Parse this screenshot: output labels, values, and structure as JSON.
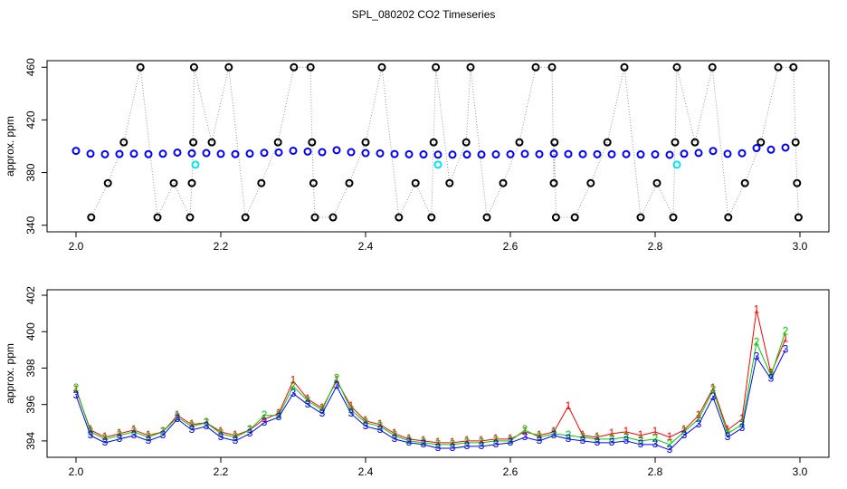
{
  "chart_data": [
    {
      "type": "scatter",
      "title": "SPL_080202  CO2 Timeseries",
      "ylabel": "approx. ppm",
      "xlim": [
        1.96,
        3.04
      ],
      "ylim": [
        335,
        465
      ],
      "xticks": [
        {
          "value": 2,
          "label": "2.0"
        },
        {
          "value": 2.2,
          "label": "2.2"
        },
        {
          "value": 2.4,
          "label": "2.4"
        },
        {
          "value": 2.6,
          "label": "2.6"
        },
        {
          "value": 2.8,
          "label": "2.8"
        },
        {
          "value": 3,
          "label": "3.0"
        }
      ],
      "yticks": [
        340,
        380,
        420,
        460
      ],
      "series": [
        {
          "color": "#000000",
          "x": [
            2.021,
            2.044,
            2.066,
            2.089,
            2.1125,
            2.135,
            2.1575,
            2.16,
            2.162,
            2.163,
            2.1875,
            2.211,
            2.234,
            2.256,
            2.279,
            2.301,
            2.324,
            2.326,
            2.328,
            2.33,
            2.355,
            2.3775,
            2.4,
            2.4225,
            2.446,
            2.469,
            2.491,
            2.494,
            2.497,
            2.516,
            2.539,
            2.545,
            2.5675,
            2.59,
            2.6125,
            2.635,
            2.6575,
            2.66,
            2.661,
            2.663,
            2.689,
            2.711,
            2.734,
            2.7575,
            2.78,
            2.8025,
            2.825,
            2.8275,
            2.83,
            2.855,
            2.879,
            2.901,
            2.924,
            2.946,
            2.97,
            2.991,
            2.994,
            2.996,
            2.998
          ],
          "values": [
            346,
            372,
            403,
            460,
            346,
            372,
            346,
            372,
            403,
            460,
            403,
            460,
            346,
            372,
            403,
            460,
            460,
            403,
            372,
            346,
            346,
            372,
            403,
            460,
            346,
            372,
            346,
            403,
            460,
            372,
            403,
            460,
            346,
            372,
            403,
            460,
            460,
            372,
            403,
            346,
            346,
            372,
            403,
            460,
            346,
            372,
            346,
            403,
            460,
            403,
            460,
            346,
            372,
            403,
            460,
            460,
            403,
            372,
            346
          ]
        },
        {
          "color": "#0000ff",
          "x": [
            2.0,
            2.02,
            2.04,
            2.06,
            2.08,
            2.1,
            2.12,
            2.14,
            2.16,
            2.18,
            2.2,
            2.22,
            2.24,
            2.26,
            2.28,
            2.3,
            2.32,
            2.34,
            2.36,
            2.38,
            2.4,
            2.42,
            2.44,
            2.46,
            2.48,
            2.5,
            2.52,
            2.54,
            2.56,
            2.58,
            2.6,
            2.62,
            2.64,
            2.66,
            2.68,
            2.7,
            2.72,
            2.74,
            2.76,
            2.78,
            2.8,
            2.82,
            2.84,
            2.86,
            2.88,
            2.9,
            2.92,
            2.94,
            2.96,
            2.98
          ],
          "values": [
            396.5,
            394.3,
            393.9,
            394.1,
            394.3,
            394.0,
            394.3,
            395.2,
            394.6,
            394.8,
            394.2,
            394.0,
            394.4,
            395.0,
            395.3,
            396.6,
            396.0,
            395.5,
            397.0,
            395.5,
            394.8,
            394.6,
            394.1,
            393.9,
            393.8,
            393.6,
            393.6,
            393.7,
            393.7,
            393.8,
            393.9,
            394.2,
            394.0,
            394.3,
            394.1,
            394.0,
            393.9,
            393.9,
            394.0,
            393.8,
            393.8,
            393.5,
            394.3,
            394.9,
            396.4,
            394.2,
            394.7,
            398.6,
            397.4,
            399.0
          ]
        },
        {
          "color": "#00e5ee",
          "x": [
            2.165,
            2.5,
            2.83
          ],
          "values": [
            386,
            386,
            386
          ]
        }
      ]
    },
    {
      "type": "marker-line",
      "ylabel": "approx. ppm",
      "xlim": [
        1.96,
        3.04
      ],
      "ylim": [
        393.1,
        402.3
      ],
      "xticks": [
        {
          "value": 2,
          "label": "2.0"
        },
        {
          "value": 2.2,
          "label": "2.2"
        },
        {
          "value": 2.4,
          "label": "2.4"
        },
        {
          "value": 2.6,
          "label": "2.6"
        },
        {
          "value": 2.8,
          "label": "2.8"
        },
        {
          "value": 3,
          "label": "3.0"
        }
      ],
      "yticks": [
        394,
        396,
        398,
        400,
        402
      ],
      "x": [
        2.0,
        2.02,
        2.04,
        2.06,
        2.08,
        2.1,
        2.12,
        2.14,
        2.16,
        2.18,
        2.2,
        2.22,
        2.24,
        2.26,
        2.28,
        2.3,
        2.32,
        2.34,
        2.36,
        2.38,
        2.4,
        2.42,
        2.44,
        2.46,
        2.48,
        2.5,
        2.52,
        2.54,
        2.56,
        2.58,
        2.6,
        2.62,
        2.64,
        2.66,
        2.68,
        2.7,
        2.72,
        2.74,
        2.76,
        2.78,
        2.8,
        2.82,
        2.84,
        2.86,
        2.88,
        2.9,
        2.92,
        2.94,
        2.96,
        2.98
      ],
      "series": [
        {
          "marker": "1",
          "color": "#ff0000",
          "values": [
            396.8,
            394.6,
            394.2,
            394.4,
            394.6,
            394.3,
            394.5,
            395.4,
            394.9,
            395.0,
            394.5,
            394.3,
            394.6,
            395.2,
            395.5,
            397.3,
            396.3,
            395.8,
            397.3,
            395.9,
            395.1,
            394.9,
            394.4,
            394.1,
            394.0,
            393.9,
            393.9,
            394.0,
            394.0,
            394.1,
            394.1,
            394.5,
            394.3,
            394.5,
            395.9,
            394.3,
            394.2,
            394.4,
            394.5,
            394.3,
            394.5,
            394.2,
            394.6,
            395.4,
            396.9,
            394.6,
            395.2,
            401.2,
            397.7,
            399.6
          ]
        },
        {
          "marker": "2",
          "color": "#00cd00",
          "values": [
            396.9,
            394.5,
            394.1,
            394.3,
            394.5,
            394.2,
            394.5,
            395.3,
            394.8,
            395.0,
            394.4,
            394.2,
            394.6,
            395.4,
            395.4,
            397.0,
            396.2,
            395.7,
            397.4,
            395.7,
            395.0,
            394.8,
            394.3,
            394.0,
            393.9,
            393.8,
            393.8,
            393.9,
            393.9,
            394.0,
            394.0,
            394.6,
            394.2,
            394.4,
            394.3,
            394.2,
            394.1,
            394.1,
            394.2,
            394.0,
            394.1,
            393.8,
            394.5,
            395.2,
            396.8,
            394.4,
            394.9,
            399.4,
            397.6,
            400.0
          ]
        },
        {
          "marker": "3",
          "color": "#0000ff",
          "values": [
            396.5,
            394.3,
            393.9,
            394.1,
            394.3,
            394.0,
            394.3,
            395.2,
            394.6,
            394.8,
            394.2,
            394.0,
            394.4,
            395.0,
            395.3,
            396.6,
            396.0,
            395.5,
            397.0,
            395.5,
            394.8,
            394.6,
            394.1,
            393.9,
            393.8,
            393.6,
            393.6,
            393.7,
            393.7,
            393.8,
            393.9,
            394.2,
            394.0,
            394.3,
            394.1,
            394.0,
            393.9,
            393.9,
            394.0,
            393.8,
            393.8,
            393.5,
            394.3,
            394.9,
            396.4,
            394.2,
            394.7,
            398.6,
            397.4,
            399.0
          ]
        }
      ]
    }
  ]
}
